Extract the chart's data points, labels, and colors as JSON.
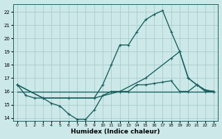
{
  "xlabel": "Humidex (Indice chaleur)",
  "background_color": "#cce8e8",
  "grid_color": "#aacccc",
  "line_color": "#1a6060",
  "xlim_min": -0.5,
  "xlim_max": 23.5,
  "ylim_min": 13.8,
  "ylim_max": 22.6,
  "yticks": [
    14,
    15,
    16,
    17,
    18,
    19,
    20,
    21,
    22
  ],
  "xticks": [
    0,
    1,
    2,
    3,
    4,
    5,
    6,
    7,
    8,
    9,
    10,
    11,
    12,
    13,
    14,
    15,
    16,
    17,
    18,
    19,
    20,
    21,
    22,
    23
  ],
  "line1_x": [
    0,
    1,
    2,
    3,
    4,
    5,
    6,
    7,
    8,
    9,
    10,
    11,
    12,
    13,
    14,
    15,
    16,
    17,
    18,
    19,
    20,
    21,
    22,
    23
  ],
  "line1_y": [
    16.5,
    15.7,
    15.5,
    15.5,
    15.1,
    14.9,
    14.3,
    13.9,
    13.9,
    14.6,
    15.7,
    16.0,
    16.0,
    16.0,
    16.5,
    16.5,
    16.6,
    16.7,
    16.8,
    16.0,
    16.0,
    16.5,
    16.1,
    16.0
  ],
  "line2_x": [
    0,
    23
  ],
  "line2_y": [
    16.0,
    16.0
  ],
  "line3_x": [
    0,
    3,
    6,
    9,
    10,
    11,
    12,
    13,
    14,
    15,
    16,
    17,
    18,
    19,
    20,
    21,
    22,
    23
  ],
  "line3_y": [
    16.5,
    15.5,
    15.5,
    15.5,
    16.5,
    18.0,
    19.5,
    19.5,
    20.5,
    21.4,
    21.8,
    22.1,
    20.5,
    19.0,
    17.0,
    16.5,
    16.1,
    16.0
  ],
  "line4_x": [
    0,
    3,
    6,
    9,
    12,
    15,
    18,
    19,
    20,
    21,
    22,
    23
  ],
  "line4_y": [
    16.5,
    15.5,
    15.5,
    15.5,
    16.0,
    17.0,
    18.5,
    19.0,
    17.0,
    16.5,
    16.0,
    16.0
  ],
  "linewidth": 1.0,
  "marker_size": 3.0
}
